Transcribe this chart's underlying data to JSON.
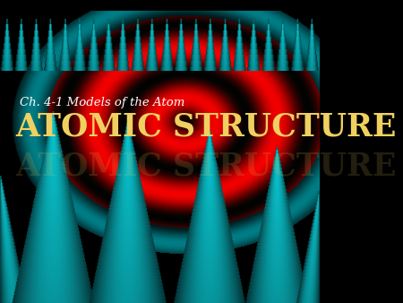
{
  "title_small": "Ch. 4-1 Models of the Atom",
  "title_large": "ATOMIC STRUCTURE",
  "title_small_color": "#ffffff",
  "title_large_color": "#f0d060",
  "background_color": "#000000",
  "figsize": [
    4.5,
    3.38
  ],
  "dpi": 100
}
